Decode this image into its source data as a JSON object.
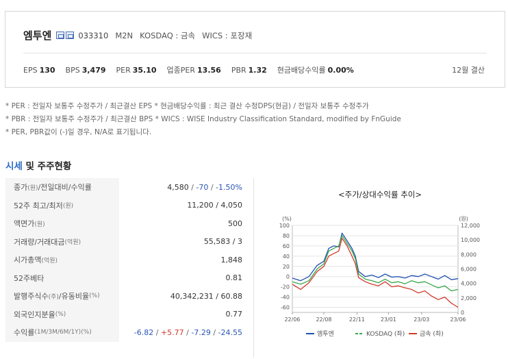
{
  "company": {
    "name": "엠투엔",
    "code": "033310",
    "english": "M2N",
    "market": "KOSDAQ : 금속",
    "wics": "WICS : 포장재"
  },
  "metrics": [
    {
      "label": "EPS",
      "value": "130"
    },
    {
      "label": "BPS",
      "value": "3,479"
    },
    {
      "label": "PER",
      "value": "35.10"
    },
    {
      "label": "업종PER",
      "value": "13.56"
    },
    {
      "label": "PBR",
      "value": "1.32"
    },
    {
      "label": "현금배당수익률",
      "value": "0.00%"
    }
  ],
  "settlement": "12월 결산",
  "notes": [
    "* PER : 전일자 보통주 수정주가 / 최근결산 EPS * 현금배당수익률 : 최근 결산 수정DPS(현금) / 전일자 보통주 수정주가",
    "* PBR : 전일자 보통주 수정주가 / 최근결산 BPS * WICS : WISE Industry Classification Standard, modified by FnGuide",
    "* PER, PBR값이 (-)일 경우, N/A로 표기됩니다."
  ],
  "section": {
    "accent": "시세",
    "rest": " 및 주주현황"
  },
  "table": {
    "price_label": "종가",
    "price_unit": "(원)",
    "price_label2": "/전일대비/수익률",
    "price": "4,580",
    "change": "-70",
    "change_pct": "-1.50%",
    "r2": {
      "label": "52주 최고/최저",
      "unit": "(원)",
      "value": "11,200 / 4,050"
    },
    "r3": {
      "label": "액면가",
      "unit": "(원)",
      "value": "500"
    },
    "r4": {
      "label": "거래량/거래대금",
      "unit": "(억원)",
      "value": "55,583 / 3"
    },
    "r5": {
      "label": "시가총액",
      "unit": "(억원)",
      "value": "1,848"
    },
    "r6": {
      "label": "52주베타",
      "unit": "",
      "value": "0.81"
    },
    "r7": {
      "label": "발행주식수",
      "unit": "(주)",
      "label2": "/유동비율",
      "unit2": "(%)",
      "value": "40,342,231 / 60.88"
    },
    "r8": {
      "label": "외국인지분율",
      "unit": "(%)",
      "value": "0.77"
    },
    "r9": {
      "label": "수익률",
      "unit": "(1M/3M/6M/1Y)(%)",
      "v1": "-6.82",
      "v2": "+5.77",
      "v3": "-7.29",
      "v4": "-24.55"
    }
  },
  "chart_data": {
    "type": "line",
    "title": "<주가/상대수익률 추이>",
    "left_unit": "(%)",
    "right_unit": "(원)",
    "ylim_left": [
      -70,
      100
    ],
    "ylim_right": [
      0,
      12000
    ],
    "left_ticks": [
      100,
      80,
      60,
      40,
      20,
      0,
      -20,
      -40,
      -60
    ],
    "right_ticks": [
      "12,000",
      "10,000",
      "8,000",
      "6,000",
      "4,000",
      "2,000",
      "0"
    ],
    "right_tick_values": [
      12000,
      10000,
      8000,
      6000,
      4000,
      2000,
      0
    ],
    "x_ticks": [
      "22/06",
      "22/08",
      "22/11",
      "23/01",
      "23/03",
      "23/06"
    ],
    "x_tick_pos": [
      0,
      0.19,
      0.39,
      0.58,
      0.78,
      1
    ],
    "grid": true,
    "legend_position": "bottom",
    "series": [
      {
        "name": "엠투엔",
        "axis": "left",
        "color": "#2050b0",
        "dash": "",
        "x": [
          0,
          0.05,
          0.1,
          0.15,
          0.19,
          0.22,
          0.25,
          0.28,
          0.3,
          0.33,
          0.36,
          0.38,
          0.4,
          0.44,
          0.48,
          0.52,
          0.56,
          0.6,
          0.64,
          0.68,
          0.72,
          0.76,
          0.8,
          0.84,
          0.88,
          0.92,
          0.96,
          1.0
        ],
        "y": [
          -3,
          -8,
          0,
          22,
          30,
          55,
          60,
          58,
          85,
          70,
          55,
          40,
          10,
          0,
          3,
          -2,
          5,
          -1,
          0,
          -3,
          2,
          0,
          5,
          0,
          -5,
          2,
          -6,
          -4
        ]
      },
      {
        "name": "KOSDAQ (좌)",
        "axis": "left",
        "color": "#3aa64a",
        "dash": "6,3",
        "x": [
          0,
          0.05,
          0.1,
          0.15,
          0.19,
          0.22,
          0.25,
          0.28,
          0.3,
          0.33,
          0.36,
          0.38,
          0.4,
          0.44,
          0.48,
          0.52,
          0.56,
          0.6,
          0.64,
          0.68,
          0.72,
          0.76,
          0.8,
          0.84,
          0.88,
          0.92,
          0.96,
          1.0
        ],
        "y": [
          -10,
          -15,
          -8,
          15,
          25,
          50,
          55,
          60,
          80,
          65,
          50,
          35,
          5,
          -5,
          -8,
          -12,
          -5,
          -12,
          -10,
          -14,
          -8,
          -12,
          -10,
          -16,
          -22,
          -18,
          -28,
          -25
        ]
      },
      {
        "name": "금속 (좌)",
        "axis": "left",
        "color": "#d13a2a",
        "dash": "",
        "x": [
          0,
          0.05,
          0.1,
          0.15,
          0.19,
          0.22,
          0.25,
          0.28,
          0.3,
          0.33,
          0.36,
          0.38,
          0.4,
          0.44,
          0.48,
          0.52,
          0.56,
          0.6,
          0.64,
          0.68,
          0.72,
          0.76,
          0.8,
          0.84,
          0.88,
          0.92,
          0.96,
          1.0
        ],
        "y": [
          -15,
          -25,
          -12,
          10,
          20,
          40,
          45,
          50,
          75,
          60,
          40,
          25,
          -2,
          -10,
          -15,
          -18,
          -10,
          -20,
          -18,
          -22,
          -25,
          -32,
          -28,
          -38,
          -45,
          -40,
          -52,
          -60
        ]
      }
    ]
  }
}
